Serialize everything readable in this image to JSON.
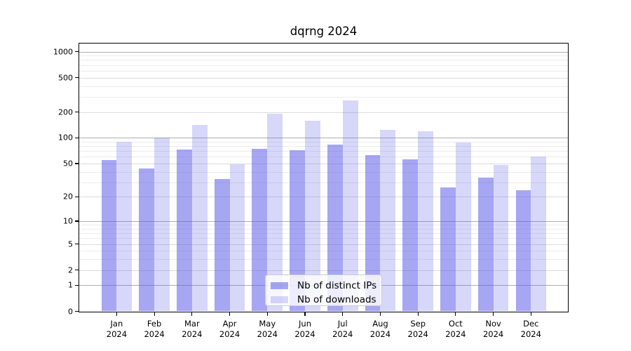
{
  "chart_data": {
    "type": "bar",
    "title": "dqrng 2024",
    "categories": [
      "Jan",
      "Feb",
      "Mar",
      "Apr",
      "May",
      "Jun",
      "Jul",
      "Aug",
      "Sep",
      "Oct",
      "Nov",
      "Dec"
    ],
    "x_tick_second_line": "2024",
    "series": [
      {
        "name": "Nb of distinct IPs",
        "key": "ips",
        "color": "rgba(84,84,232,0.52)",
        "values": [
          55,
          44,
          73,
          33,
          75,
          72,
          83,
          63,
          56,
          26,
          34,
          24
        ]
      },
      {
        "name": "Nb of downloads",
        "key": "downloads",
        "color": "rgba(84,84,232,0.23)",
        "values": [
          90,
          101,
          140,
          49,
          192,
          158,
          275,
          123,
          120,
          88,
          48,
          60
        ]
      }
    ],
    "yscale": "log1p",
    "yticks": [
      0,
      1,
      2,
      5,
      10,
      20,
      50,
      100,
      200,
      500,
      1000
    ],
    "minor_yticks": [
      3,
      4,
      6,
      7,
      8,
      9,
      30,
      40,
      60,
      70,
      80,
      90,
      300,
      400,
      600,
      700,
      800,
      900
    ],
    "ylim": [
      0,
      1240
    ],
    "xlabel": "",
    "ylabel": "",
    "grid": "horizontal",
    "legend_position": "lower center",
    "colors": {
      "grid_major": "#b0b0b0",
      "grid_mid": "#dcdcdc",
      "grid_minor": "#ececec",
      "spine": "#000000",
      "text": "#000000",
      "legend_border": "#cccccc"
    }
  }
}
